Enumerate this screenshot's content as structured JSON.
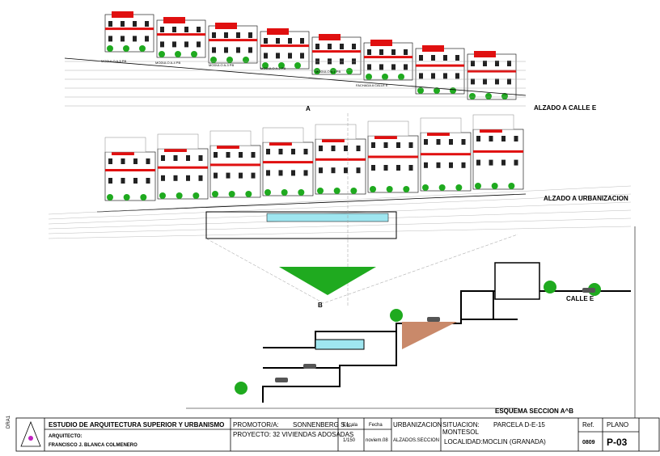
{
  "drawing": {
    "elevation_e": {
      "title": "ALZADO A CALLE E",
      "labels": [
        "MODULO A-5 PB",
        "MODULO A-4 PB",
        "MODULO A-3 PB",
        "MODULO A-2 PB",
        "MODULO A-1 PB",
        "FACHADA A CALLE E"
      ]
    },
    "section_mark_a": "A",
    "elevation_urb": {
      "title": "ALZADO A URBANIZACION"
    },
    "section_mark_b": "B",
    "section": {
      "title": "ESQUEMA SECCION A^B",
      "street": "CALLE E"
    },
    "side_code": "DRA1"
  },
  "title_block": {
    "studio": "ESTUDIO DE ARQUITECTURA SUPERIOR Y URBANISMO",
    "architect_label": "ARQUITECTO:",
    "architect": "FRANCISCO J. BLANCA COLMENERO",
    "promoter_label": "PROMOTOR/A:",
    "promoter": "SONNENBERG S.L.",
    "project": "PROYECTO:  32 VIVIENDAS ADOSADAS",
    "scale_label": "Escala",
    "scale": "1/150",
    "date_label": "Fecha",
    "date": "noviem.08",
    "type": "URBANIZACION",
    "sheet_name": "ALZADOS.SECCION",
    "site_label": "SITUACION:",
    "site": "PARCELA D-E-15",
    "site2": "MONTESOL",
    "locality": "LOCALIDAD:MOCLIN (GRANADA)",
    "ref_label": "Ref.",
    "ref": "0809",
    "plan_label": "PLANO",
    "plan": "P-03"
  }
}
